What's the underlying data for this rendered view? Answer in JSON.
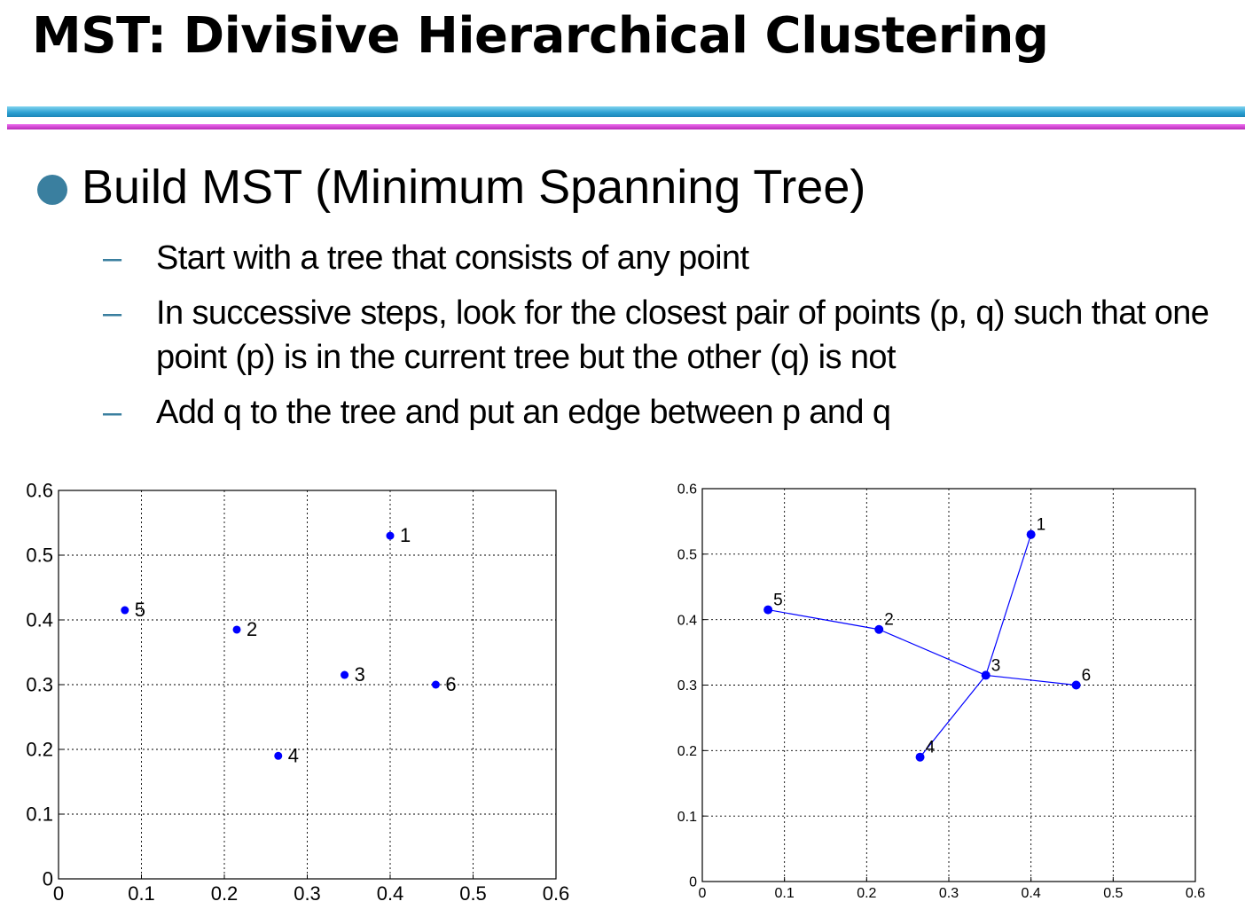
{
  "slide": {
    "title": "MST: Divisive Hierarchical Clustering",
    "bullet": "Build MST (Minimum Spanning Tree)",
    "sub_bullets": [
      "Start with a  tree that consists of any point",
      "In successive steps, look for the closest pair of points (p, q)  such that one point (p) is in  the current tree but the other (q) is not",
      "Add q to the tree and put an edge between p and q"
    ],
    "dash": "–"
  },
  "chart_data": [
    {
      "type": "scatter",
      "title": "",
      "xlabel": "",
      "ylabel": "",
      "xlim": [
        0,
        0.6
      ],
      "ylim": [
        0,
        0.6
      ],
      "xticks": [
        "0",
        "0.1",
        "0.2",
        "0.3",
        "0.4",
        "0.5",
        "0.6"
      ],
      "yticks": [
        "0",
        "0.1",
        "0.2",
        "0.3",
        "0.4",
        "0.5",
        "0.6"
      ],
      "grid": true,
      "marker_color": "#0000ff",
      "points": [
        {
          "label": "1",
          "x": 0.4,
          "y": 0.53
        },
        {
          "label": "2",
          "x": 0.215,
          "y": 0.385
        },
        {
          "label": "3",
          "x": 0.345,
          "y": 0.315
        },
        {
          "label": "4",
          "x": 0.265,
          "y": 0.19
        },
        {
          "label": "5",
          "x": 0.08,
          "y": 0.415
        },
        {
          "label": "6",
          "x": 0.455,
          "y": 0.3
        }
      ],
      "edges": []
    },
    {
      "type": "scatter",
      "title": "",
      "xlabel": "",
      "ylabel": "",
      "xlim": [
        0,
        0.6
      ],
      "ylim": [
        0,
        0.6
      ],
      "xticks": [
        "0",
        "0.1",
        "0.2",
        "0.3",
        "0.4",
        "0.5",
        "0.6"
      ],
      "yticks": [
        "0",
        "0.1",
        "0.2",
        "0.3",
        "0.4",
        "0.5",
        "0.6"
      ],
      "grid": true,
      "marker_color": "#0000ff",
      "points": [
        {
          "label": "1",
          "x": 0.4,
          "y": 0.53
        },
        {
          "label": "2",
          "x": 0.215,
          "y": 0.385
        },
        {
          "label": "3",
          "x": 0.345,
          "y": 0.315
        },
        {
          "label": "4",
          "x": 0.265,
          "y": 0.19
        },
        {
          "label": "5",
          "x": 0.08,
          "y": 0.415
        },
        {
          "label": "6",
          "x": 0.455,
          "y": 0.3
        }
      ],
      "edges": [
        [
          "5",
          "2"
        ],
        [
          "2",
          "3"
        ],
        [
          "3",
          "1"
        ],
        [
          "3",
          "6"
        ],
        [
          "3",
          "4"
        ]
      ]
    }
  ]
}
